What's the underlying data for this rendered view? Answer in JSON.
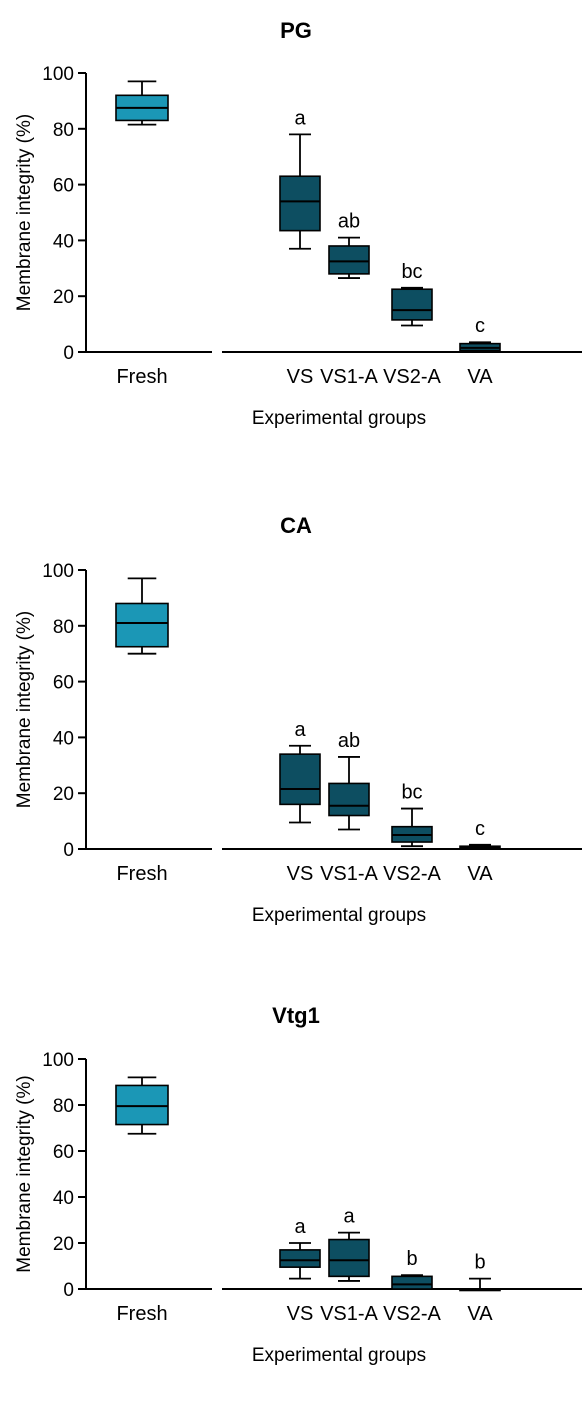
{
  "chart_data": [
    {
      "type": "box",
      "title": "PG",
      "xlabel": "Experimental groups",
      "ylabel": "Membrane integrity (%)",
      "ylim": [
        0,
        100
      ],
      "yticks": [
        0,
        20,
        40,
        60,
        80,
        100
      ],
      "categories": [
        "Fresh",
        "VS",
        "VS1-A",
        "VS2-A",
        "VA"
      ],
      "colors": {
        "fresh": "#1b97b6",
        "treated": "#0d4e61"
      },
      "boxes": [
        {
          "category": "Fresh",
          "min": 81.5,
          "q1": 83,
          "median": 87.5,
          "q3": 92,
          "max": 97,
          "label": ""
        },
        {
          "category": "VS",
          "min": 37,
          "q1": 43.5,
          "median": 54,
          "q3": 63,
          "max": 78,
          "label": "a"
        },
        {
          "category": "VS1-A",
          "min": 26.5,
          "q1": 28,
          "median": 32.5,
          "q3": 38,
          "max": 41,
          "label": "ab"
        },
        {
          "category": "VS2-A",
          "min": 9.5,
          "q1": 11.5,
          "median": 15,
          "q3": 22.5,
          "max": 23,
          "label": "bc"
        },
        {
          "category": "VA",
          "min": 0,
          "q1": 0.5,
          "median": 1.5,
          "q3": 3,
          "max": 3.5,
          "label": "c"
        }
      ]
    },
    {
      "type": "box",
      "title": "CA",
      "xlabel": "Experimental groups",
      "ylabel": "Membrane integrity (%)",
      "ylim": [
        0,
        100
      ],
      "yticks": [
        0,
        20,
        40,
        60,
        80,
        100
      ],
      "categories": [
        "Fresh",
        "VS",
        "VS1-A",
        "VS2-A",
        "VA"
      ],
      "colors": {
        "fresh": "#1b97b6",
        "treated": "#0d4e61"
      },
      "boxes": [
        {
          "category": "Fresh",
          "min": 70,
          "q1": 72.5,
          "median": 81,
          "q3": 88,
          "max": 97,
          "label": ""
        },
        {
          "category": "VS",
          "min": 9.5,
          "q1": 16,
          "median": 21.5,
          "q3": 34,
          "max": 37,
          "label": "a"
        },
        {
          "category": "VS1-A",
          "min": 7,
          "q1": 12,
          "median": 15.5,
          "q3": 23.5,
          "max": 33,
          "label": "ab"
        },
        {
          "category": "VS2-A",
          "min": 1,
          "q1": 2.5,
          "median": 5,
          "q3": 8,
          "max": 14.5,
          "label": "bc"
        },
        {
          "category": "VA",
          "min": 0,
          "q1": 0.3,
          "median": 0.6,
          "q3": 1,
          "max": 1.5,
          "label": "c"
        }
      ]
    },
    {
      "type": "box",
      "title": "Vtg1",
      "xlabel": "Experimental groups",
      "ylabel": "Membrane integrity (%)",
      "ylim": [
        0,
        100
      ],
      "yticks": [
        0,
        20,
        40,
        60,
        80,
        100
      ],
      "categories": [
        "Fresh",
        "VS",
        "VS1-A",
        "VS2-A",
        "VA"
      ],
      "colors": {
        "fresh": "#1b97b6",
        "treated": "#0d4e61"
      },
      "boxes": [
        {
          "category": "Fresh",
          "min": 67.5,
          "q1": 71.5,
          "median": 79.5,
          "q3": 88.5,
          "max": 92,
          "label": ""
        },
        {
          "category": "VS",
          "min": 4.5,
          "q1": 9.5,
          "median": 12.5,
          "q3": 17,
          "max": 20,
          "label": "a"
        },
        {
          "category": "VS1-A",
          "min": 3.5,
          "q1": 5.5,
          "median": 12.5,
          "q3": 21.5,
          "max": 24.5,
          "label": "a"
        },
        {
          "category": "VS2-A",
          "min": 0,
          "q1": 0,
          "median": 2,
          "q3": 5.5,
          "max": 6,
          "label": "b"
        },
        {
          "category": "VA",
          "min": 0,
          "q1": 0,
          "median": 0,
          "q3": 0,
          "max": 4.5,
          "label": "b"
        }
      ]
    }
  ]
}
